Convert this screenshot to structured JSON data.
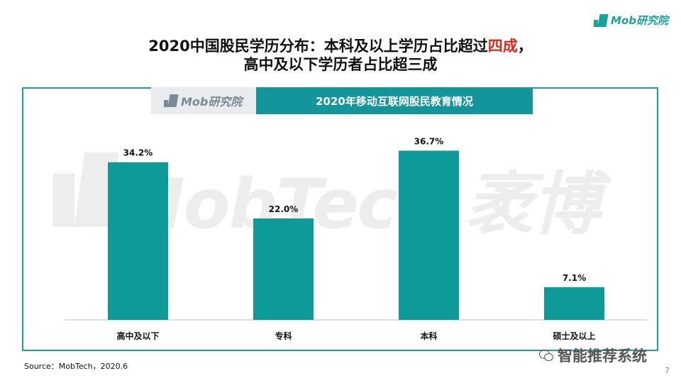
{
  "brand": {
    "logo_text": "Mob研究院"
  },
  "title": {
    "line1_before": "2020中国股民学历分布：本科及以上学历占比超过",
    "line1_highlight": "四成",
    "line1_after": "，",
    "line2": "高中及以下学历者占比超三成"
  },
  "header": {
    "logo_text": "Mob研究院",
    "chart_title": "2020年移动互联网股民教育情况"
  },
  "watermark": {
    "text": "MobTech 袤博"
  },
  "chart_data": {
    "type": "bar",
    "title": "2020年移动互联网股民教育情况",
    "categories": [
      "高中及以下",
      "专科",
      "本科",
      "硕士及以上"
    ],
    "values": [
      34.2,
      22.0,
      36.7,
      7.1
    ],
    "value_labels": [
      "34.2%",
      "22.0%",
      "36.7%",
      "7.1%"
    ],
    "unit": "%",
    "xlabel": "",
    "ylabel": "",
    "ylim": [
      0,
      40
    ],
    "grid": false,
    "color": "#0f9a9a"
  },
  "footer": {
    "source": "Source：MobTech，2020.6",
    "wechat_text": "智能推荐系统",
    "page_number": "7"
  }
}
